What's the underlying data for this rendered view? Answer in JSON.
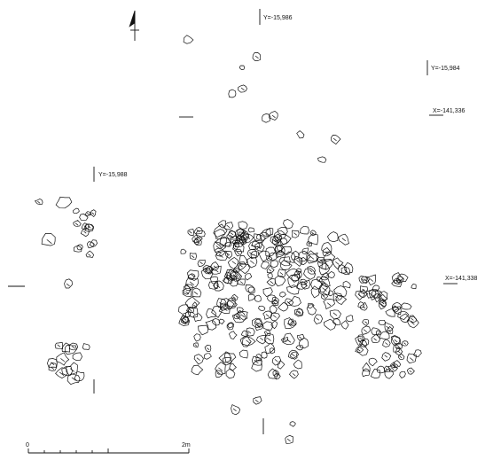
{
  "grid_labels": {
    "y_15986": "Y=-15,986",
    "y_15984": "Y=-15,984",
    "y_15988": "Y=-15,988",
    "x_141336": "X=-141,336",
    "x_141338": "X=-141,338"
  },
  "scale": {
    "start": "0",
    "end": "2m"
  },
  "colors": {
    "ink": "#111111",
    "paper": "#ffffff"
  },
  "icons": {
    "north": "north-arrow-icon"
  }
}
